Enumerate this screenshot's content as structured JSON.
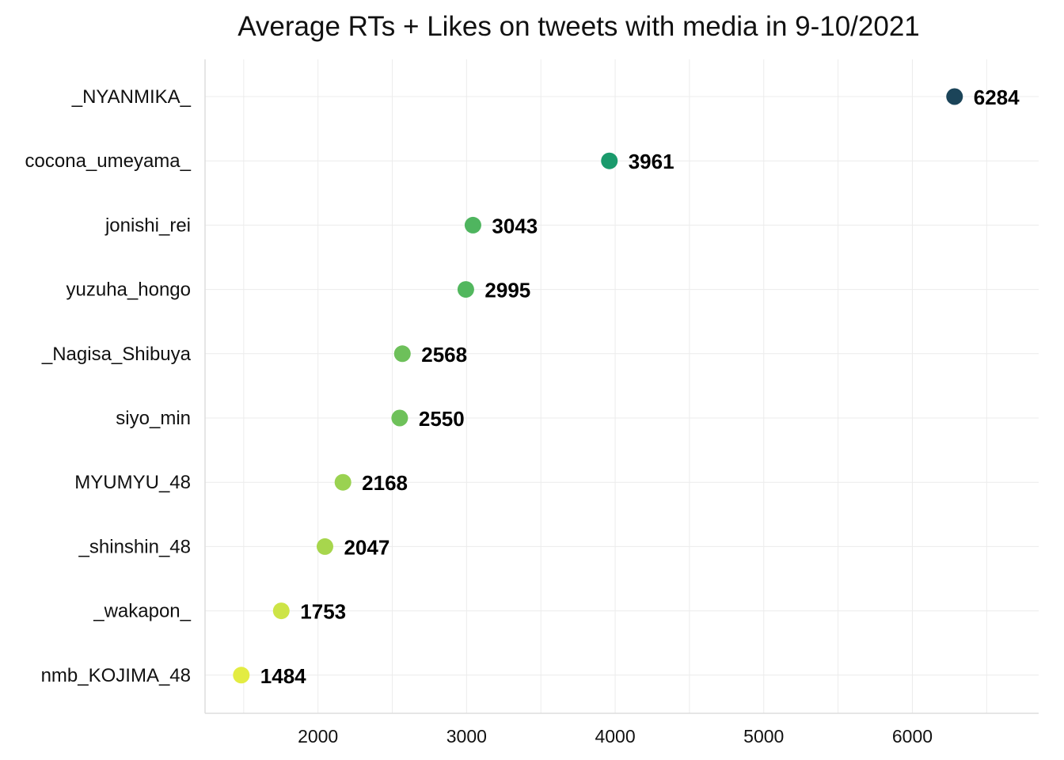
{
  "chart_data": {
    "type": "scatter",
    "title": "Average RTs + Likes on tweets with media in 9-10/2021",
    "xlabel": "",
    "ylabel": "",
    "xlim": [
      1240,
      6850
    ],
    "x_ticks": [
      2000,
      3000,
      4000,
      5000,
      6000
    ],
    "grid": true,
    "legend": "none",
    "categories": [
      "_NYANMIKA_",
      "cocona_umeyama_",
      "jonishi_rei",
      "yuzuha_hongo",
      "_Nagisa_Shibuya",
      "siyo_min",
      "MYUMYU_48",
      "_shinshin_48",
      "_wakapon_",
      "nmb_KOJIMA_48"
    ],
    "values": [
      6284,
      3961,
      3043,
      2995,
      2568,
      2550,
      2168,
      2047,
      1753,
      1484
    ],
    "colors": [
      "#1b4459",
      "#1a9a6c",
      "#4fb55f",
      "#52b75e",
      "#6dc05a",
      "#6ec15a",
      "#9ad251",
      "#a7d64d",
      "#cde446",
      "#e3ec42"
    ]
  }
}
